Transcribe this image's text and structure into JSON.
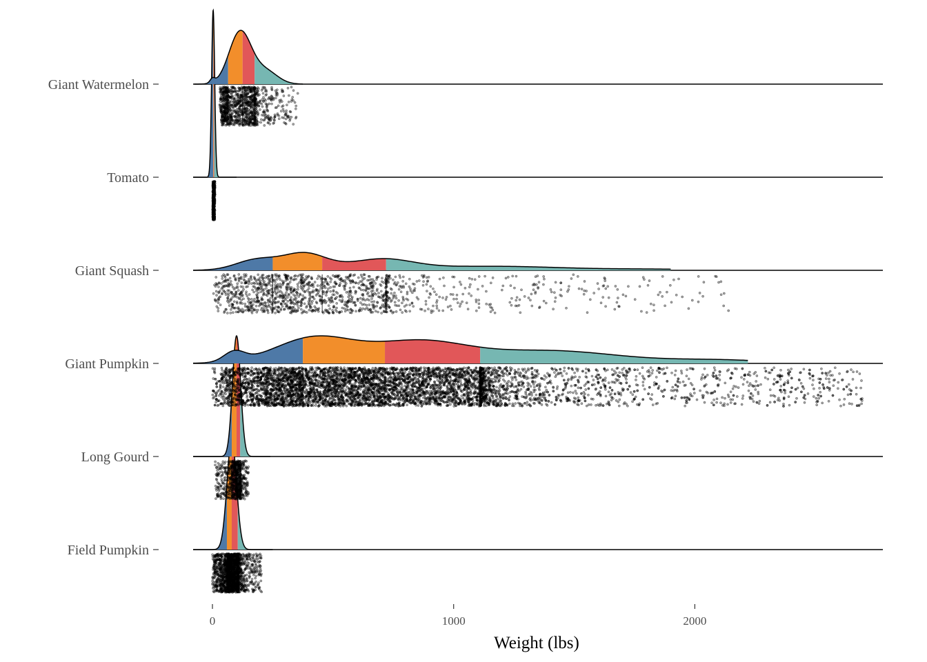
{
  "chart_data": {
    "type": "raincloud",
    "xlabel": "Weight (lbs)",
    "ylabel": "",
    "xlim": [
      -80,
      2780
    ],
    "x_ticks": [
      0,
      1000,
      2000
    ],
    "x_tick_labels": [
      "0",
      "1000",
      "2000"
    ],
    "grid": false,
    "legend": "none",
    "quartile_colors": [
      "#4e79a7",
      "#f28e2b",
      "#e15759",
      "#76b7b2"
    ],
    "categories": [
      "Giant Watermelon",
      "Tomato",
      "Giant Squash",
      "Giant Pumpkin",
      "Long Gourd",
      "Field Pumpkin"
    ],
    "series": [
      {
        "name": "Giant Watermelon",
        "min": 30,
        "q1": 65,
        "median": 125,
        "q3": 175,
        "max": 355,
        "peak_x": 110,
        "density_spread": 70
      },
      {
        "name": "Tomato",
        "min": 1,
        "q1": 3,
        "median": 5,
        "q3": 7,
        "max": 11,
        "peak_x": 4,
        "density_spread": 10
      },
      {
        "name": "Giant Squash",
        "min": 0,
        "q1": 250,
        "median": 455,
        "q3": 720,
        "max": 2150,
        "peak_x": 370,
        "density_spread": 280
      },
      {
        "name": "Giant Pumpkin",
        "min": 0,
        "q1": 375,
        "median": 715,
        "q3": 1110,
        "max": 2700,
        "peak_x": 600,
        "density_spread": 400
      },
      {
        "name": "Long Gourd",
        "min": 10,
        "q1": 80,
        "median": 100,
        "q3": 115,
        "max": 150,
        "peak_x": 100,
        "density_spread": 22
      },
      {
        "name": "Field Pumpkin",
        "min": 0,
        "q1": 60,
        "median": 80,
        "q3": 105,
        "max": 205,
        "peak_x": 80,
        "density_spread": 25
      }
    ]
  }
}
